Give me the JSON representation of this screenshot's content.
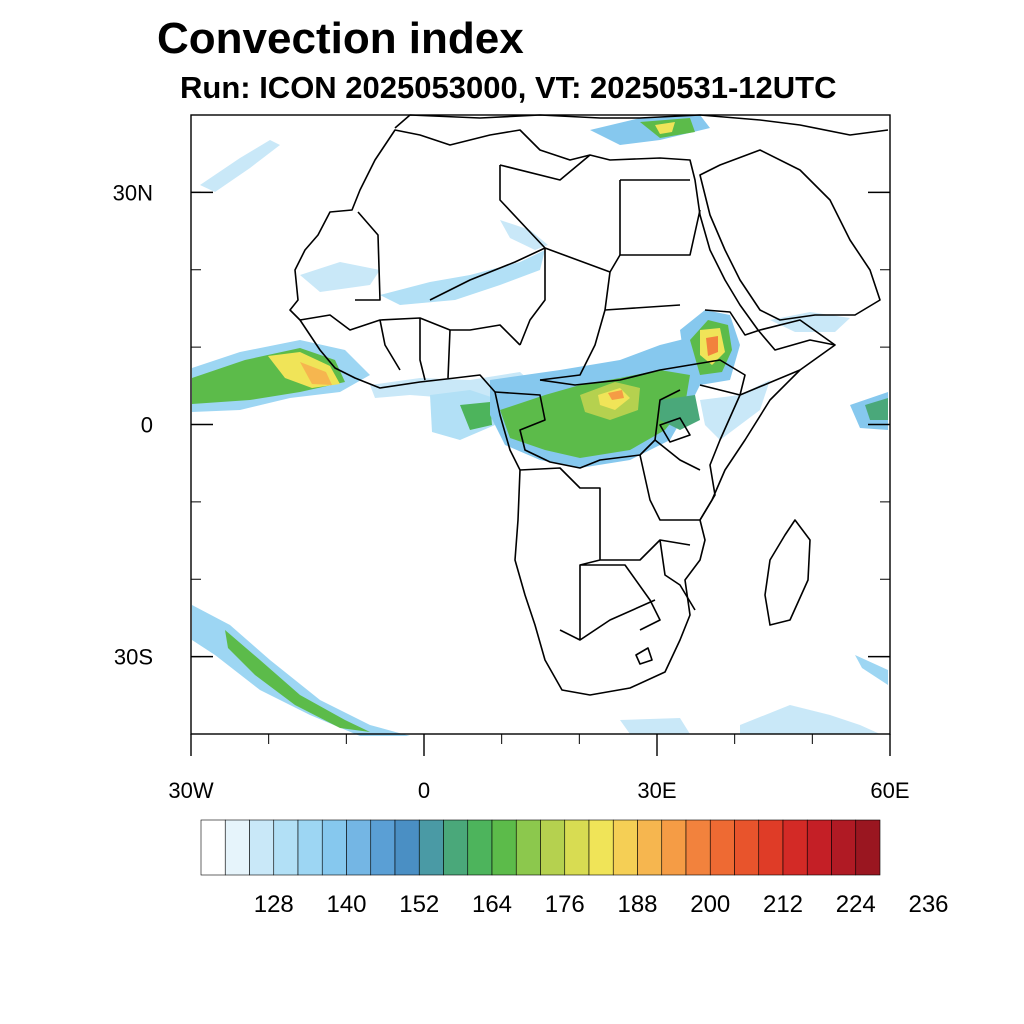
{
  "title": "Convection index",
  "subtitle": "Run: ICON 2025053000,  VT: 20250531-12UTC",
  "map": {
    "extent": {
      "lon_min": -30,
      "lon_max": 60,
      "lat_min": -40,
      "lat_max": 40
    },
    "lat_ticks": [
      {
        "lat": 30,
        "label": "30N"
      },
      {
        "lat": 0,
        "label": "0"
      },
      {
        "lat": -30,
        "label": "30S"
      }
    ],
    "lon_ticks": [
      {
        "lon": -30,
        "label": "30W"
      },
      {
        "lon": 0,
        "label": "0"
      },
      {
        "lon": 30,
        "label": "30E"
      },
      {
        "lon": 60,
        "label": "60E"
      }
    ]
  },
  "colorbar": {
    "colors": [
      "#ffffff",
      "#e6f4fb",
      "#c9e8f8",
      "#b2e0f6",
      "#9dd6f3",
      "#86c8ee",
      "#74b6e4",
      "#5a9fd5",
      "#4a8fc4",
      "#4a9aa5",
      "#4aa87a",
      "#4db45c",
      "#5cbb4a",
      "#8cc84d",
      "#b5d14f",
      "#d8dc52",
      "#f0e458",
      "#f5cf55",
      "#f6b64f",
      "#f59c45",
      "#f2823d",
      "#ee6a33",
      "#e8542c",
      "#df3c27",
      "#d32a26",
      "#c41f26",
      "#b01a24",
      "#9a1620"
    ],
    "tick_labels": [
      "128",
      "140",
      "152",
      "164",
      "176",
      "188",
      "200",
      "212",
      "224",
      "236"
    ]
  }
}
